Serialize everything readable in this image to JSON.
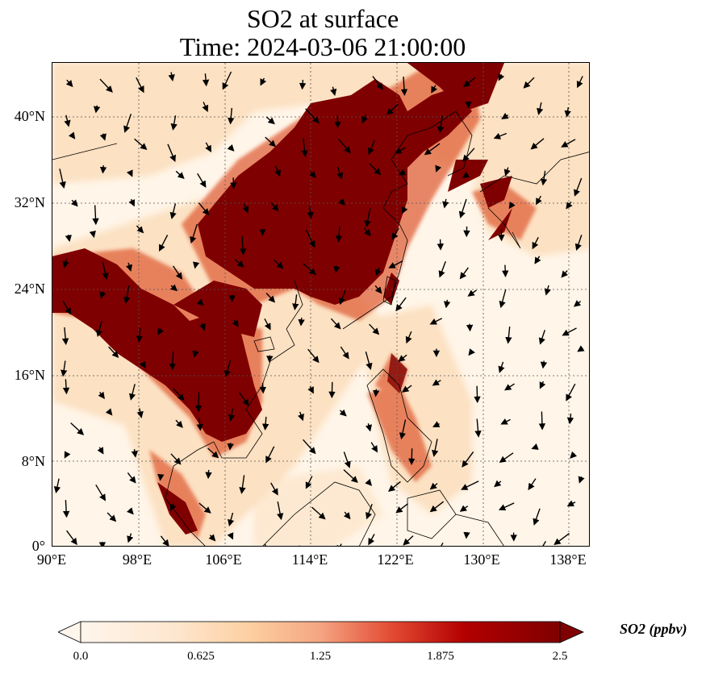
{
  "title": {
    "line1": "SO2 at surface",
    "line2": "Time: 2024-03-06 21:00:00"
  },
  "map": {
    "lat_labels": [
      "40°N",
      "32°N",
      "24°N",
      "16°N",
      "8°N",
      "0°"
    ],
    "lon_labels": [
      "90°E",
      "98°E",
      "106°E",
      "114°E",
      "122°E",
      "130°E",
      "138°E"
    ],
    "gridlines": "dotted"
  },
  "colorbar": {
    "label": "SO2 (ppbv)",
    "ticks": [
      "0.0",
      "0.625",
      "1.25",
      "1.875",
      "2.5"
    ],
    "colormap": [
      "#fff5eb",
      "#fdd9b0",
      "#fdae6b",
      "#f16913",
      "#d94801",
      "#a50f15",
      "#7f0000"
    ],
    "extend": "both"
  },
  "colors": {
    "high": "#7f0000",
    "mid": "#c0392b",
    "low": "#fde3c4",
    "background": "#fff5e8",
    "vectors": "#000000"
  }
}
